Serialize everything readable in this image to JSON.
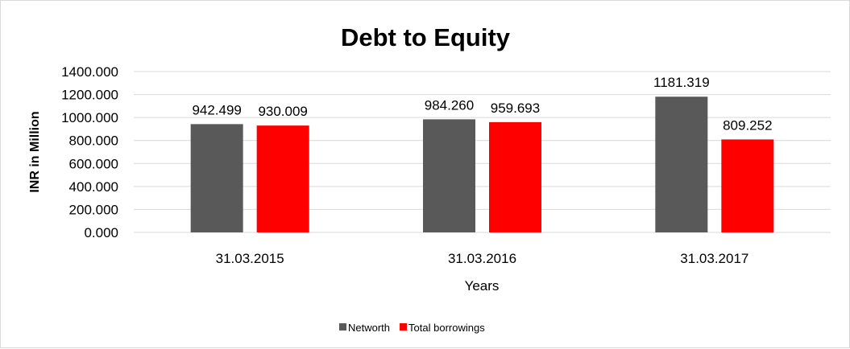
{
  "chart_data": {
    "type": "bar",
    "title": "Debt to Equity",
    "xlabel": "Years",
    "ylabel": "INR in Million",
    "categories": [
      "31.03.2015",
      "31.03.2016",
      "31.03.2017"
    ],
    "series": [
      {
        "name": "Networth",
        "color": "#595959",
        "values": [
          942.499,
          984.26,
          1181.319
        ],
        "labels": [
          "942.499",
          "984.260",
          "1181.319"
        ]
      },
      {
        "name": "Total borrowings",
        "color": "#ff0000",
        "values": [
          930.009,
          959.693,
          809.252
        ],
        "labels": [
          "930.009",
          "959.693",
          "809.252"
        ]
      }
    ],
    "ylim": [
      0,
      1400
    ],
    "yticks": [
      "0.000",
      "200.000",
      "400.000",
      "600.000",
      "800.000",
      "1000.000",
      "1200.000",
      "1400.000"
    ],
    "grid": true,
    "legend": "bottom"
  }
}
